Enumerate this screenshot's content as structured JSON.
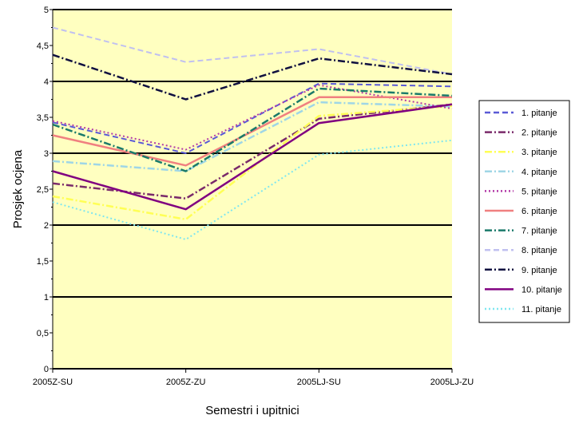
{
  "chart_data": {
    "type": "line",
    "title": "",
    "xlabel": "Semestri i upitnici",
    "ylabel": "Prosjek ocjena",
    "ylim": [
      0,
      5
    ],
    "ytick_step": 0.5,
    "ytick_labels": [
      "0",
      "0,5",
      "1",
      "1,5",
      "2",
      "2,5",
      "3",
      "3,5",
      "4",
      "4,5",
      "5"
    ],
    "categories": [
      "2005Z-SU",
      "2005Z-ZU",
      "2005LJ-SU",
      "2005LJ-ZU"
    ],
    "grid": "horizontal at every whole unit",
    "legend_position": "right",
    "plot_background": "#ffffc0",
    "series": [
      {
        "name": "1. pitanje",
        "values": [
          3.43,
          3.0,
          3.97,
          3.93
        ],
        "color": "#5a5ad6",
        "dash": "dash"
      },
      {
        "name": "2. pitanje",
        "values": [
          2.58,
          2.37,
          3.48,
          3.68
        ],
        "color": "#7a2a6a",
        "dash": "dashdot"
      },
      {
        "name": "3. pitanje",
        "values": [
          2.4,
          2.08,
          3.52,
          3.66
        ],
        "color": "#ffff55",
        "dash": "dashdot"
      },
      {
        "name": "4. pitanje",
        "values": [
          2.89,
          2.75,
          3.71,
          3.65
        ],
        "color": "#9fd6e6",
        "dash": "dashdot"
      },
      {
        "name": "5. pitanje",
        "values": [
          3.45,
          3.05,
          3.95,
          3.62
        ],
        "color": "#b23aa8",
        "dash": "dot"
      },
      {
        "name": "6. pitanje",
        "values": [
          3.25,
          2.83,
          3.78,
          3.78
        ],
        "color": "#f08080",
        "dash": "solid"
      },
      {
        "name": "7. pitanje",
        "values": [
          3.4,
          2.75,
          3.9,
          3.8
        ],
        "color": "#1a7a6a",
        "dash": "dashdot"
      },
      {
        "name": "8. pitanje",
        "values": [
          4.75,
          4.27,
          4.45,
          4.1
        ],
        "color": "#c0c0f0",
        "dash": "dash"
      },
      {
        "name": "9. pitanje",
        "values": [
          4.37,
          3.75,
          4.32,
          4.1
        ],
        "color": "#101040",
        "dash": "dashdot"
      },
      {
        "name": "10. pitanje",
        "values": [
          2.75,
          2.22,
          3.42,
          3.68
        ],
        "color": "#800080",
        "dash": "solid"
      },
      {
        "name": "11. pitanje",
        "values": [
          2.32,
          1.8,
          2.98,
          3.18
        ],
        "color": "#7fe6f0",
        "dash": "dot"
      }
    ]
  }
}
